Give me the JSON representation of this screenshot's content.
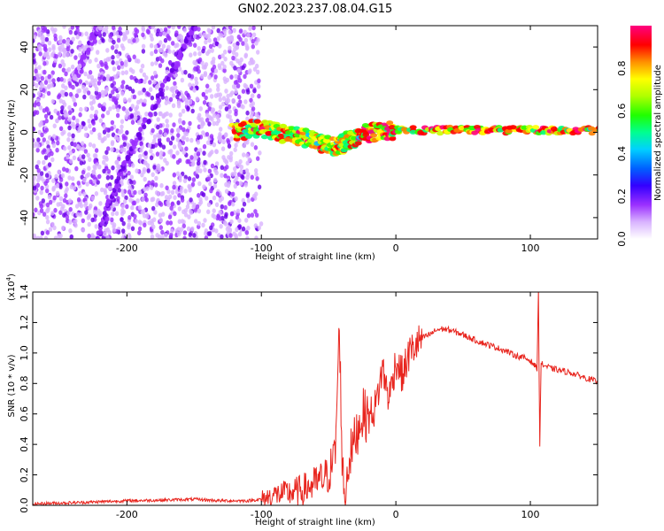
{
  "title": "GN02.2023.237.08.04.G15",
  "chart_data": [
    {
      "type": "heatmap",
      "xlabel": "Height of straight line (km)",
      "ylabel": "Frequency (Hz)",
      "xlim": [
        -270,
        150
      ],
      "ylim": [
        -50,
        50
      ],
      "xticks": [
        -200,
        -100,
        0,
        100
      ],
      "xtick_labels": [
        "-200",
        "-100",
        "0",
        "100"
      ],
      "yticks": [
        -40,
        -20,
        0,
        20,
        40
      ],
      "ytick_labels": [
        "-40",
        "-20",
        "0",
        "20",
        "40"
      ],
      "colorbar": {
        "label": "Normalized spectral amplitude",
        "range": [
          0,
          1
        ],
        "ticks": [
          0.0,
          0.2,
          0.4,
          0.6,
          0.8
        ],
        "tick_labels": [
          "0.0",
          "0.2",
          "0.4",
          "0.6",
          "0.8"
        ],
        "colormap": [
          "#ffffff",
          "#d9b3ff",
          "#9b30ff",
          "#6a00e8",
          "#0000ff",
          "#00c8ff",
          "#00ff80",
          "#30ff00",
          "#c8ff00",
          "#ffff00",
          "#ff8000",
          "#ff0000",
          "#ff0080"
        ]
      },
      "features": [
        {
          "name": "steep streak",
          "points": [
            [
              -222,
              -50
            ],
            [
              -205,
              -20
            ],
            [
              -190,
              0
            ],
            [
              -165,
              30
            ],
            [
              -150,
              50
            ]
          ],
          "amplitude": 0.25
        },
        {
          "name": "upper streak",
          "points": [
            [
              -240,
              25
            ],
            [
              -235,
              30
            ],
            [
              -225,
              44
            ],
            [
              -220,
              50
            ]
          ],
          "amplitude": 0.2
        },
        {
          "name": "main signal",
          "points": [
            [
              -120,
              0
            ],
            [
              -100,
              2
            ],
            [
              -80,
              -1
            ],
            [
              -60,
              -4
            ],
            [
              -45,
              -7
            ],
            [
              -35,
              -4
            ],
            [
              -20,
              0
            ],
            [
              0,
              1
            ],
            [
              50,
              1
            ],
            [
              100,
              1
            ],
            [
              150,
              1
            ]
          ],
          "amplitude": 0.9
        }
      ]
    },
    {
      "type": "line",
      "xlabel": "Height of straight line (km)",
      "ylabel": "SNR (10 * v/v)",
      "yscale_label": "(x10^4)",
      "yscale_base": "x10",
      "yscale_exp": "4",
      "xlim": [
        -270,
        150
      ],
      "ylim": [
        0,
        1.4
      ],
      "xticks": [
        -200,
        -100,
        0,
        100
      ],
      "xtick_labels": [
        "-200",
        "-100",
        "0",
        "100"
      ],
      "yticks": [
        0.0,
        0.2,
        0.4,
        0.6,
        0.8,
        1.0,
        1.2,
        1.4
      ],
      "ytick_labels": [
        "0.0",
        "0.2",
        "0.4",
        "0.6",
        "0.8",
        "1.0",
        "1.2",
        "1.4"
      ],
      "color": "#e8251e",
      "x": [
        -270,
        -250,
        -230,
        -200,
        -170,
        -150,
        -130,
        -110,
        -100,
        -90,
        -80,
        -70,
        -60,
        -50,
        -45,
        -42,
        -40,
        -38,
        -35,
        -30,
        -25,
        -20,
        -15,
        -10,
        -5,
        0,
        5,
        10,
        15,
        20,
        25,
        30,
        35,
        40,
        50,
        60,
        70,
        80,
        90,
        95,
        100,
        103,
        105,
        106,
        107,
        108,
        110,
        115,
        120,
        130,
        140,
        150
      ],
      "values": [
        0.01,
        0.015,
        0.02,
        0.03,
        0.035,
        0.04,
        0.03,
        0.03,
        0.04,
        0.07,
        0.08,
        0.1,
        0.14,
        0.2,
        0.35,
        1.18,
        0.3,
        0.05,
        0.3,
        0.45,
        0.6,
        0.58,
        0.65,
        0.9,
        0.7,
        0.95,
        0.85,
        1.0,
        1.05,
        1.1,
        1.12,
        1.15,
        1.16,
        1.15,
        1.12,
        1.08,
        1.05,
        1.02,
        0.98,
        0.97,
        0.95,
        0.92,
        0.9,
        1.4,
        0.4,
        0.93,
        0.92,
        0.9,
        0.89,
        0.87,
        0.84,
        0.81
      ]
    }
  ]
}
